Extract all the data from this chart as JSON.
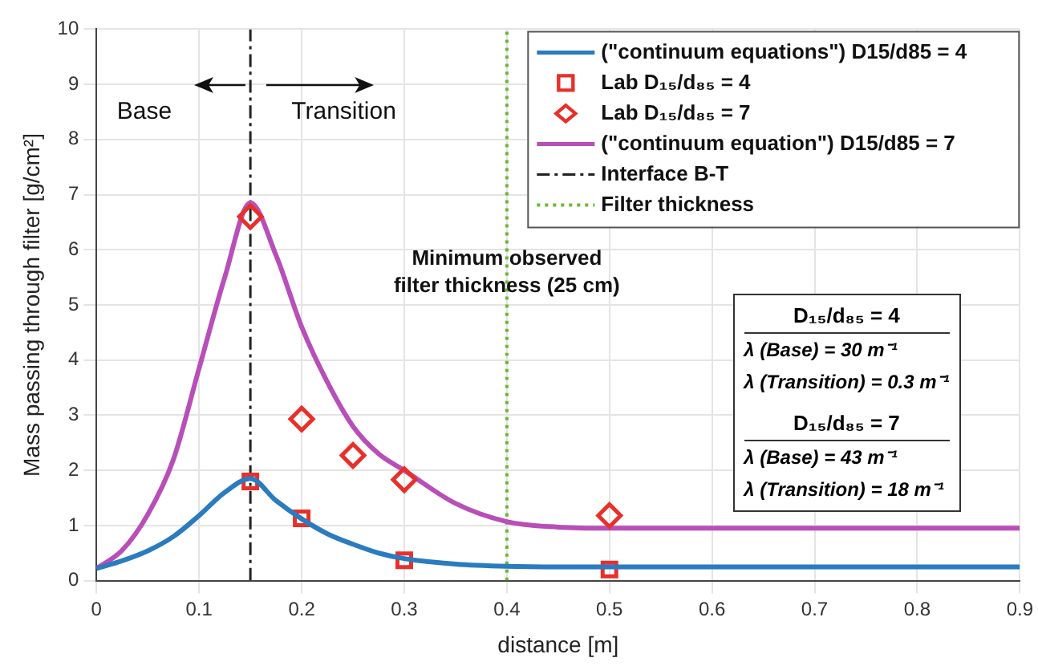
{
  "chart_data": {
    "type": "line",
    "xlabel": "distance [m]",
    "ylabel": "Mass passing through filter [g/cm²]",
    "xlim": [
      0,
      0.9
    ],
    "xticks": [
      0,
      0.1,
      0.2,
      0.3,
      0.4,
      0.5,
      0.6,
      0.7,
      0.8,
      0.9
    ],
    "ylim": [
      0,
      10
    ],
    "yticks": [
      0,
      1,
      2,
      3,
      4,
      5,
      6,
      7,
      8,
      9,
      10
    ],
    "grid": true,
    "legend": "top right",
    "series": [
      {
        "name": "(\"continuum equations\") D15/d85 = 4",
        "color": "#2a7bbf",
        "marker": "none",
        "x": [
          0,
          0.025,
          0.05,
          0.075,
          0.1,
          0.125,
          0.15,
          0.175,
          0.2,
          0.225,
          0.25,
          0.275,
          0.3,
          0.35,
          0.4,
          0.45,
          0.5,
          0.6,
          0.9
        ],
        "values": [
          0.22,
          0.36,
          0.54,
          0.8,
          1.18,
          1.6,
          1.85,
          1.45,
          1.12,
          0.85,
          0.66,
          0.5,
          0.4,
          0.3,
          0.26,
          0.25,
          0.25,
          0.25,
          0.25
        ]
      },
      {
        "name": "Lab D₁₅/d₈₅ = 4",
        "type": "scatter",
        "color": "#e8302a",
        "marker": "square",
        "x": [
          0.15,
          0.2,
          0.3,
          0.5
        ],
        "values": [
          1.8,
          1.13,
          0.37,
          0.2
        ]
      },
      {
        "name": "Lab D₁₅/d₈₅ = 7",
        "type": "scatter",
        "color": "#e8302a",
        "marker": "diamond",
        "x": [
          0.15,
          0.2,
          0.25,
          0.3,
          0.5
        ],
        "values": [
          6.6,
          2.93,
          2.27,
          1.83,
          1.18
        ]
      },
      {
        "name": "(\"continuum equation\") D15/d85 = 7",
        "color": "#b84fb8",
        "marker": "none",
        "x": [
          0,
          0.025,
          0.05,
          0.075,
          0.1,
          0.125,
          0.15,
          0.175,
          0.2,
          0.225,
          0.25,
          0.275,
          0.3,
          0.35,
          0.4,
          0.45,
          0.5,
          0.6,
          0.9
        ],
        "values": [
          0.22,
          0.55,
          1.2,
          2.2,
          3.85,
          5.5,
          6.85,
          5.9,
          4.6,
          3.6,
          2.8,
          2.3,
          2.0,
          1.4,
          1.07,
          0.97,
          0.95,
          0.95,
          0.95
        ]
      },
      {
        "name": "Interface B-T",
        "type": "line",
        "color": "#222222",
        "marker": "none",
        "line_style": "dashed",
        "x": [
          0.15,
          0.15
        ],
        "values": [
          0,
          10
        ]
      },
      {
        "name": "Filter thickness",
        "type": "line",
        "color": "#6ab830",
        "marker": "none",
        "line_style": "dotted",
        "x": [
          0.4,
          0.4
        ],
        "values": [
          0,
          10
        ]
      }
    ],
    "annotations": [
      "Base",
      "Transition",
      "Minimum observed\nfilter thickness (25 cm)",
      "D₁₅/d₈₅  = 4",
      "λ (Base) = 30 m⁻¹",
      "λ (Transition) = 0.3 m⁻¹",
      "D₁₅/d₈₅  = 7",
      "λ (Base) = 43 m⁻¹",
      "λ (Transition) = 18 m⁻¹"
    ]
  }
}
